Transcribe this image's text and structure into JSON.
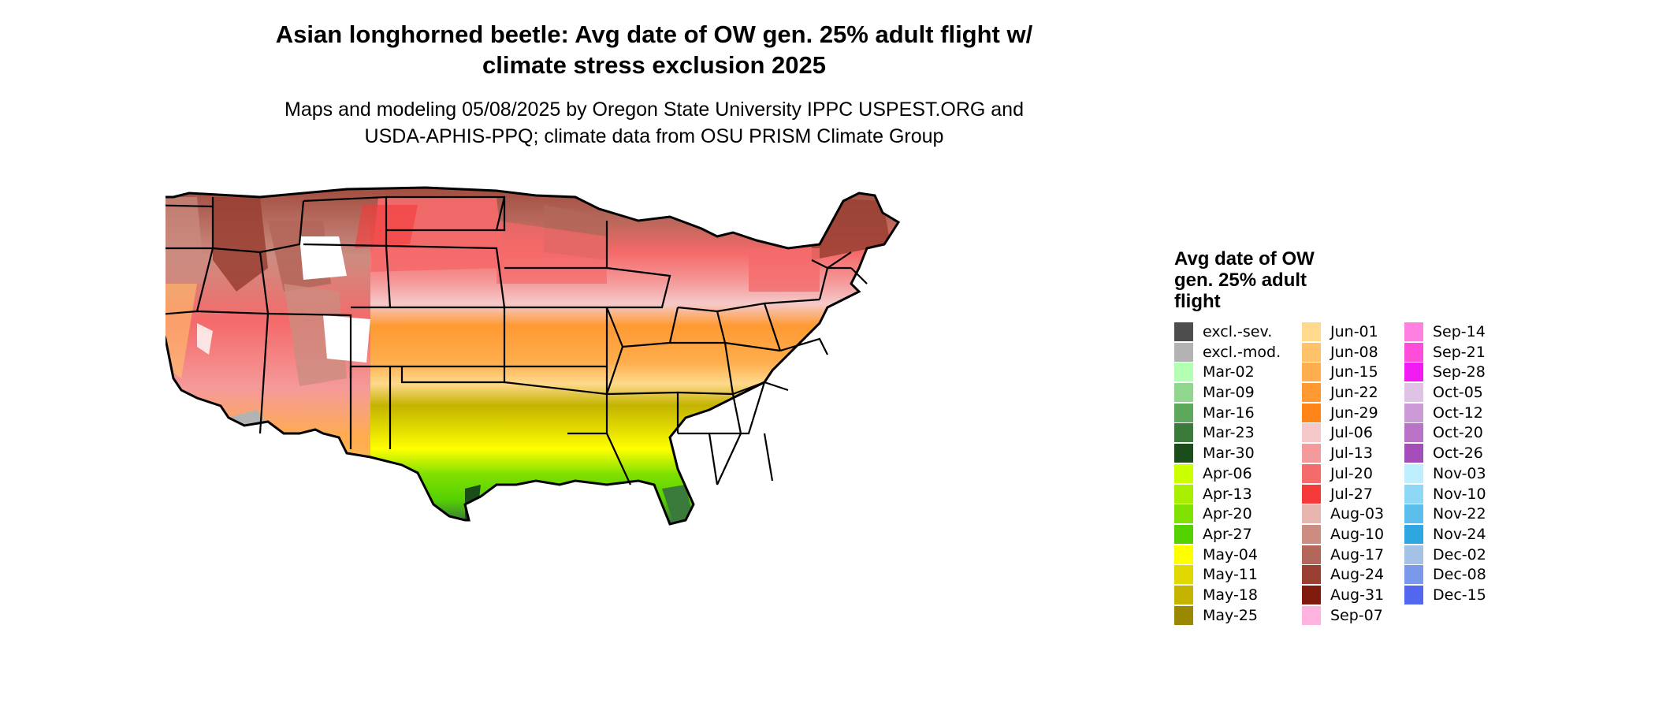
{
  "title": {
    "line1": "Asian longhorned beetle: Avg date of OW gen. 25% adult flight w/",
    "line2": "climate stress exclusion 2025"
  },
  "subtitle": {
    "line1": "Maps and modeling 05/08/2025 by Oregon State University IPPC USPEST.ORG and",
    "line2": "USDA-APHIS-PPQ; climate data from OSU PRISM Climate Group"
  },
  "legend": {
    "title_lines": [
      "Avg date of OW",
      "gen. 25% adult",
      "flight"
    ],
    "items": [
      {
        "label": "excl.-sev.",
        "color": "#4d4d4d"
      },
      {
        "label": "excl.-mod.",
        "color": "#b3b3b3"
      },
      {
        "label": "Mar-02",
        "color": "#b3ffb3"
      },
      {
        "label": "Mar-09",
        "color": "#8fd68f"
      },
      {
        "label": "Mar-16",
        "color": "#5ea85e"
      },
      {
        "label": "Mar-23",
        "color": "#3a7a3a"
      },
      {
        "label": "Mar-30",
        "color": "#1a4d1a"
      },
      {
        "label": "Apr-06",
        "color": "#ccff00"
      },
      {
        "label": "Apr-13",
        "color": "#a8ee00"
      },
      {
        "label": "Apr-20",
        "color": "#80e000"
      },
      {
        "label": "Apr-27",
        "color": "#55d100"
      },
      {
        "label": "May-04",
        "color": "#ffff00"
      },
      {
        "label": "May-11",
        "color": "#e0d800"
      },
      {
        "label": "May-18",
        "color": "#c4b400"
      },
      {
        "label": "May-25",
        "color": "#9a8800"
      },
      {
        "label": "Jun-01",
        "color": "#ffd98c"
      },
      {
        "label": "Jun-08",
        "color": "#ffc26b"
      },
      {
        "label": "Jun-15",
        "color": "#ffad4d"
      },
      {
        "label": "Jun-22",
        "color": "#ff9a33"
      },
      {
        "label": "Jun-29",
        "color": "#ff8519"
      },
      {
        "label": "Jul-06",
        "color": "#f5c9c9"
      },
      {
        "label": "Jul-13",
        "color": "#f59a9a"
      },
      {
        "label": "Jul-20",
        "color": "#f56a6a"
      },
      {
        "label": "Jul-27",
        "color": "#f53a3a"
      },
      {
        "label": "Aug-03",
        "color": "#e6b5ad"
      },
      {
        "label": "Aug-10",
        "color": "#cc8c80"
      },
      {
        "label": "Aug-17",
        "color": "#b36659"
      },
      {
        "label": "Aug-24",
        "color": "#994033"
      },
      {
        "label": "Aug-31",
        "color": "#801a0d"
      },
      {
        "label": "Sep-07",
        "color": "#ffb3e0"
      },
      {
        "label": "Sep-14",
        "color": "#ff80e0"
      },
      {
        "label": "Sep-21",
        "color": "#ff4ddb"
      },
      {
        "label": "Sep-28",
        "color": "#f21af2"
      },
      {
        "label": "Oct-05",
        "color": "#e0c2e6"
      },
      {
        "label": "Oct-12",
        "color": "#cc9ad6"
      },
      {
        "label": "Oct-20",
        "color": "#b873c7"
      },
      {
        "label": "Oct-26",
        "color": "#a34db8"
      },
      {
        "label": "Nov-03",
        "color": "#bfeeff"
      },
      {
        "label": "Nov-10",
        "color": "#8ed8f5"
      },
      {
        "label": "Nov-22",
        "color": "#5cbfeb"
      },
      {
        "label": "Nov-24",
        "color": "#2ea6e0"
      },
      {
        "label": "Dec-02",
        "color": "#a3c2e6"
      },
      {
        "label": "Dec-08",
        "color": "#7a99eb"
      },
      {
        "label": "Dec-15",
        "color": "#5266f0"
      }
    ]
  }
}
